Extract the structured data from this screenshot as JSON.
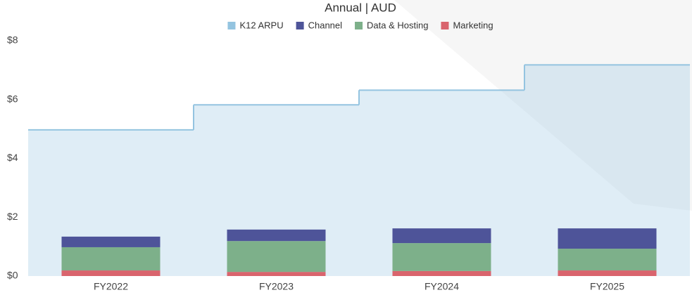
{
  "chart_data": {
    "type": "bar",
    "title": "Annual | AUD",
    "stacked": true,
    "categories": [
      "FY2022",
      "FY2023",
      "FY2024",
      "FY2025"
    ],
    "series": [
      {
        "name": "K12 ARPU",
        "color": "#94c4e0",
        "type": "step-area",
        "values": [
          4.97,
          5.82,
          6.32,
          7.18
        ]
      },
      {
        "name": "Channel",
        "color": "#4e5499",
        "values": [
          0.36,
          0.39,
          0.5,
          0.69
        ]
      },
      {
        "name": "Data & Hosting",
        "color": "#7db08a",
        "values": [
          0.79,
          1.05,
          0.95,
          0.74
        ]
      },
      {
        "name": "Marketing",
        "color": "#d9646d",
        "values": [
          0.19,
          0.14,
          0.17,
          0.19
        ]
      }
    ],
    "ylim": [
      0,
      8
    ],
    "yticks": [
      {
        "value": 0,
        "label": "$0"
      },
      {
        "value": 2,
        "label": "$2"
      },
      {
        "value": 4,
        "label": "$4"
      },
      {
        "value": 6,
        "label": "$6"
      },
      {
        "value": 8,
        "label": "$8"
      }
    ],
    "legend": "top"
  }
}
